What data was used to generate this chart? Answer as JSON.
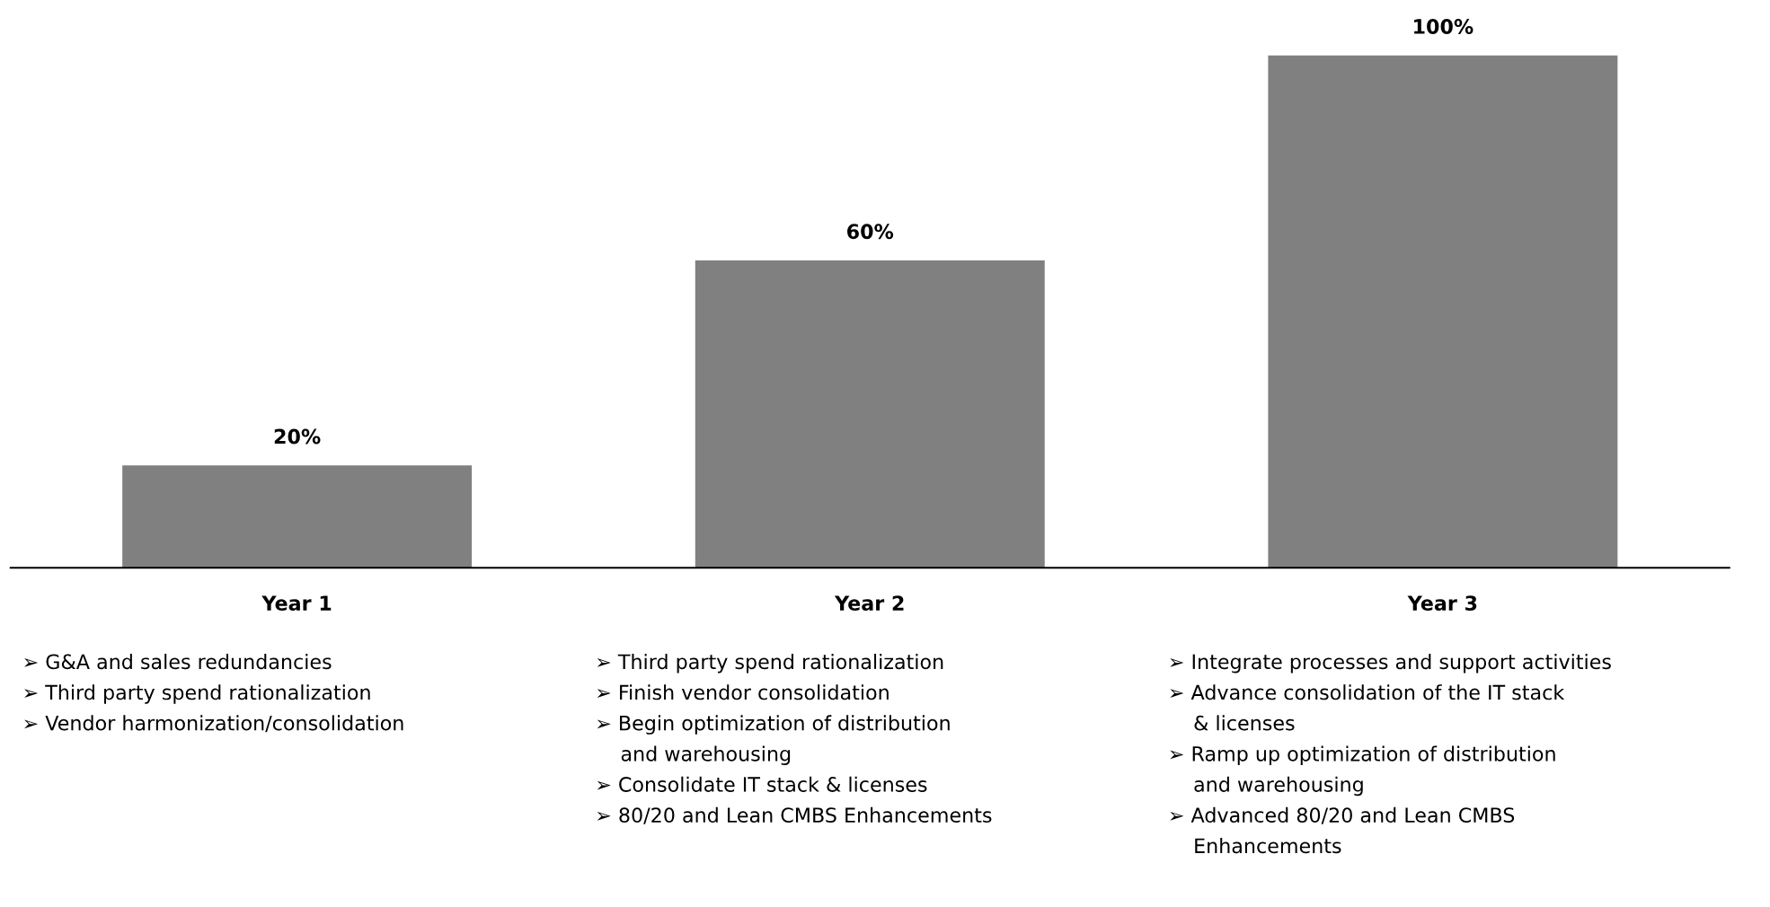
{
  "chart_data": {
    "type": "bar",
    "categories": [
      "Year 1",
      "Year 2",
      "Year 3"
    ],
    "values": [
      20,
      60,
      100
    ],
    "value_labels": [
      "20%",
      "60%",
      "100%"
    ],
    "color": "#808080",
    "grid": false,
    "annotations": [
      "➢ G&A and sales redundancies\n➢ Third party spend rationalization\n➢ Vendor harmonization/consolidation",
      "➢ Third party spend rationalization\n➢ Finish vendor consolidation\n➢ Begin optimization of distribution\n    and warehousing\n➢ Consolidate IT stack & licenses\n➢ 80/20 and Lean CMBS Enhancements",
      "➢ Integrate processes and support activities\n➢ Advance consolidation of the IT stack\n    & licenses\n➢ Ramp up optimization of distribution\n    and warehousing\n➢ Advanced 80/20 and Lean CMBS\n    Enhancements"
    ]
  }
}
